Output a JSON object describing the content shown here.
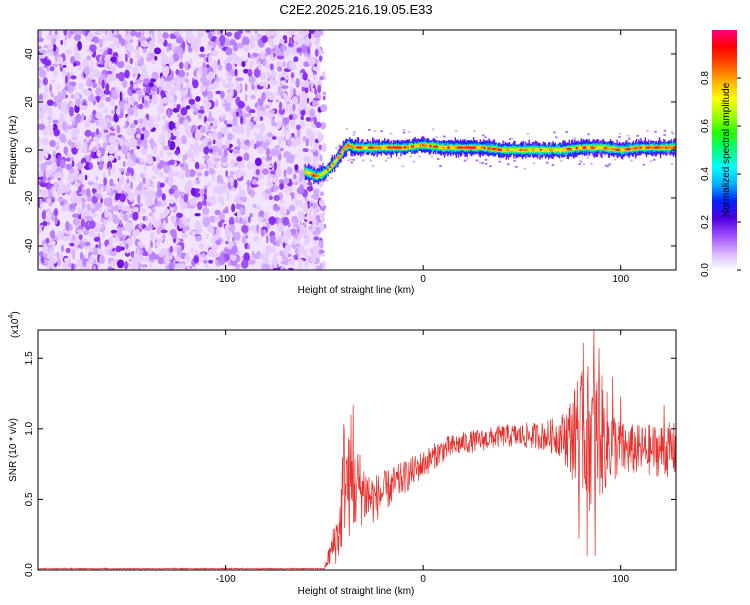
{
  "title": "C2E2.2025.216.19.05.E33",
  "chart_data": [
    {
      "type": "heatmap",
      "name": "spectrogram",
      "xlabel": "Height of straight line (km)",
      "ylabel": "Frequency (Hz)",
      "xlim": [
        -195,
        128
      ],
      "ylim": [
        -50,
        50
      ],
      "xticks": [
        -100,
        0,
        100
      ],
      "yticks": [
        -40,
        -20,
        0,
        20,
        40
      ],
      "noise_region_x": [
        -195,
        -52
      ],
      "trace": {
        "x": [
          -60,
          -57,
          -54,
          -51,
          -48,
          -45,
          -42,
          -40,
          -38,
          -35,
          -30,
          -20,
          -10,
          0,
          10,
          20,
          30,
          40,
          50,
          60,
          70,
          80,
          90,
          100,
          110,
          120,
          128
        ],
        "y": [
          -9,
          -10,
          -11,
          -10,
          -8,
          -5,
          -2,
          1,
          2,
          1,
          1,
          1,
          1,
          2,
          1,
          1,
          1,
          0,
          0,
          0,
          0,
          1,
          1,
          0,
          1,
          1,
          1
        ]
      },
      "colorbar": {
        "label": "Normalized spectral amplitude",
        "range": [
          0,
          1
        ],
        "ticks": [
          0.0,
          0.2,
          0.4,
          0.6,
          0.8
        ],
        "tick_labels": [
          "0.0",
          "0.2",
          "0.4",
          "0.6",
          "0.8"
        ],
        "colors": [
          "#ffffff",
          "#d9b3ff",
          "#a04dff",
          "#5000e0",
          "#0020ff",
          "#00b0ff",
          "#00ffff",
          "#00ff80",
          "#20ff00",
          "#a0ff00",
          "#ffff00",
          "#ffb000",
          "#ff5000",
          "#ff0000",
          "#ff0080"
        ]
      }
    },
    {
      "type": "line",
      "name": "snr",
      "xlabel": "Height of straight line (km)",
      "ylabel": "SNR (10 * v/v)",
      "scale_label": "(x10",
      "scale_exp": "4",
      "xlim": [
        -195,
        128
      ],
      "ylim": [
        0,
        1.7
      ],
      "xticks": [
        -100,
        0,
        100
      ],
      "yticks": [
        0.0,
        0.5,
        1.0,
        1.5
      ],
      "ytick_labels": [
        "0.0",
        "0.5",
        "1.0",
        "1.5"
      ],
      "color": "#e8302c",
      "envelope": {
        "x": [
          -195,
          -50,
          -42,
          -40,
          -38,
          -35,
          -33,
          -30,
          -25,
          -20,
          -10,
          0,
          10,
          20,
          30,
          40,
          50,
          60,
          70,
          75,
          80,
          85,
          90,
          95,
          100,
          110,
          120,
          128
        ],
        "y": [
          0.01,
          0.01,
          0.3,
          0.7,
          0.6,
          0.55,
          0.6,
          0.55,
          0.5,
          0.55,
          0.65,
          0.75,
          0.85,
          0.9,
          0.92,
          0.95,
          0.95,
          0.95,
          0.95,
          0.95,
          0.95,
          0.95,
          0.95,
          0.9,
          0.85,
          0.85,
          0.85,
          0.85
        ]
      },
      "spread": {
        "x": [
          -195,
          -50,
          -42,
          -40,
          -35,
          -30,
          -25,
          -20,
          -10,
          0,
          20,
          40,
          60,
          70,
          75,
          80,
          85,
          90,
          95,
          100,
          110,
          128
        ],
        "y": [
          0.004,
          0.004,
          0.25,
          0.45,
          0.3,
          0.25,
          0.18,
          0.15,
          0.12,
          0.1,
          0.08,
          0.08,
          0.1,
          0.15,
          0.3,
          0.45,
          0.55,
          0.45,
          0.3,
          0.2,
          0.18,
          0.2
        ]
      },
      "spikes": [
        {
          "x": -35.5,
          "y": 1.17
        },
        {
          "x": -36.5,
          "y": 1.1
        },
        {
          "x": 78,
          "y": 1.34
        },
        {
          "x": 81,
          "y": 1.61
        },
        {
          "x": 86.5,
          "y": 1.7
        },
        {
          "x": 89,
          "y": 1.57
        },
        {
          "x": 96,
          "y": 1.37
        },
        {
          "x": 100,
          "y": 1.23
        },
        {
          "x": 122,
          "y": 1.17
        },
        {
          "x": 83,
          "y": 0.1
        },
        {
          "x": 87,
          "y": 0.1
        },
        {
          "x": 79,
          "y": 0.22
        }
      ]
    }
  ]
}
